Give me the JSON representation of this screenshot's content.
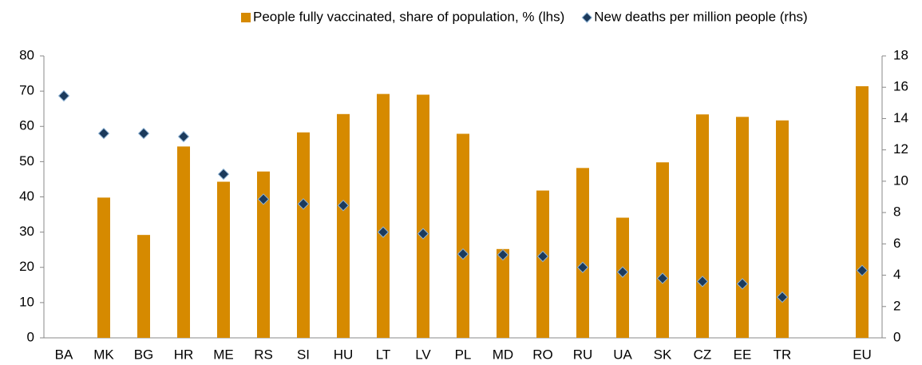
{
  "chart_data": {
    "type": "bar",
    "categories": [
      "BA",
      "MK",
      "BG",
      "HR",
      "ME",
      "RS",
      "SI",
      "HU",
      "LT",
      "LV",
      "PL",
      "MD",
      "RO",
      "RU",
      "UA",
      "SK",
      "CZ",
      "EE",
      "TR",
      null,
      "EU"
    ],
    "series": [
      {
        "name": "People fully vaccinated, share of population, % (lhs)",
        "type": "bar",
        "color": "#d68a00",
        "values": [
          null,
          39.8,
          29.2,
          54.3,
          44.3,
          47.2,
          58.3,
          63.5,
          69.2,
          69.0,
          57.9,
          25.2,
          41.8,
          48.2,
          34.1,
          49.8,
          63.4,
          62.7,
          61.7,
          null,
          71.4
        ]
      },
      {
        "name": "New deaths per million people (rhs)",
        "type": "scatter",
        "axis": "y2",
        "color": "#1b3a5c",
        "values": [
          15.45,
          13.05,
          13.05,
          12.85,
          10.45,
          8.85,
          8.55,
          8.45,
          6.75,
          6.65,
          5.35,
          5.3,
          5.2,
          4.5,
          4.2,
          3.8,
          3.6,
          3.45,
          2.6,
          null,
          4.3
        ]
      }
    ],
    "ylim": [
      0,
      80
    ],
    "yticks": [
      0,
      10,
      20,
      30,
      40,
      50,
      60,
      70,
      80
    ],
    "y2lim": [
      0,
      18
    ],
    "y2ticks": [
      0,
      2,
      4,
      6,
      8,
      10,
      12,
      14,
      16,
      18
    ],
    "grid": false,
    "legend": "top"
  }
}
